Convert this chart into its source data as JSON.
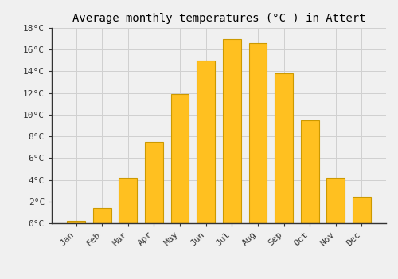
{
  "title": "Average monthly temperatures (°C ) in Attert",
  "months": [
    "Jan",
    "Feb",
    "Mar",
    "Apr",
    "May",
    "Jun",
    "Jul",
    "Aug",
    "Sep",
    "Oct",
    "Nov",
    "Dec"
  ],
  "values": [
    0.2,
    1.4,
    4.2,
    7.5,
    11.9,
    15.0,
    17.0,
    16.6,
    13.8,
    9.5,
    4.2,
    2.4
  ],
  "bar_color": "#FFC020",
  "bar_edge_color": "#CC9900",
  "ylim": [
    0,
    18
  ],
  "yticks": [
    0,
    2,
    4,
    6,
    8,
    10,
    12,
    14,
    16,
    18
  ],
  "ytick_labels": [
    "0°C",
    "2°C",
    "4°C",
    "6°C",
    "8°C",
    "10°C",
    "12°C",
    "14°C",
    "16°C",
    "18°C"
  ],
  "background_color": "#f0f0f0",
  "grid_color": "#d0d0d0",
  "title_fontsize": 10,
  "tick_fontsize": 8,
  "font_family": "monospace",
  "bar_width": 0.7
}
